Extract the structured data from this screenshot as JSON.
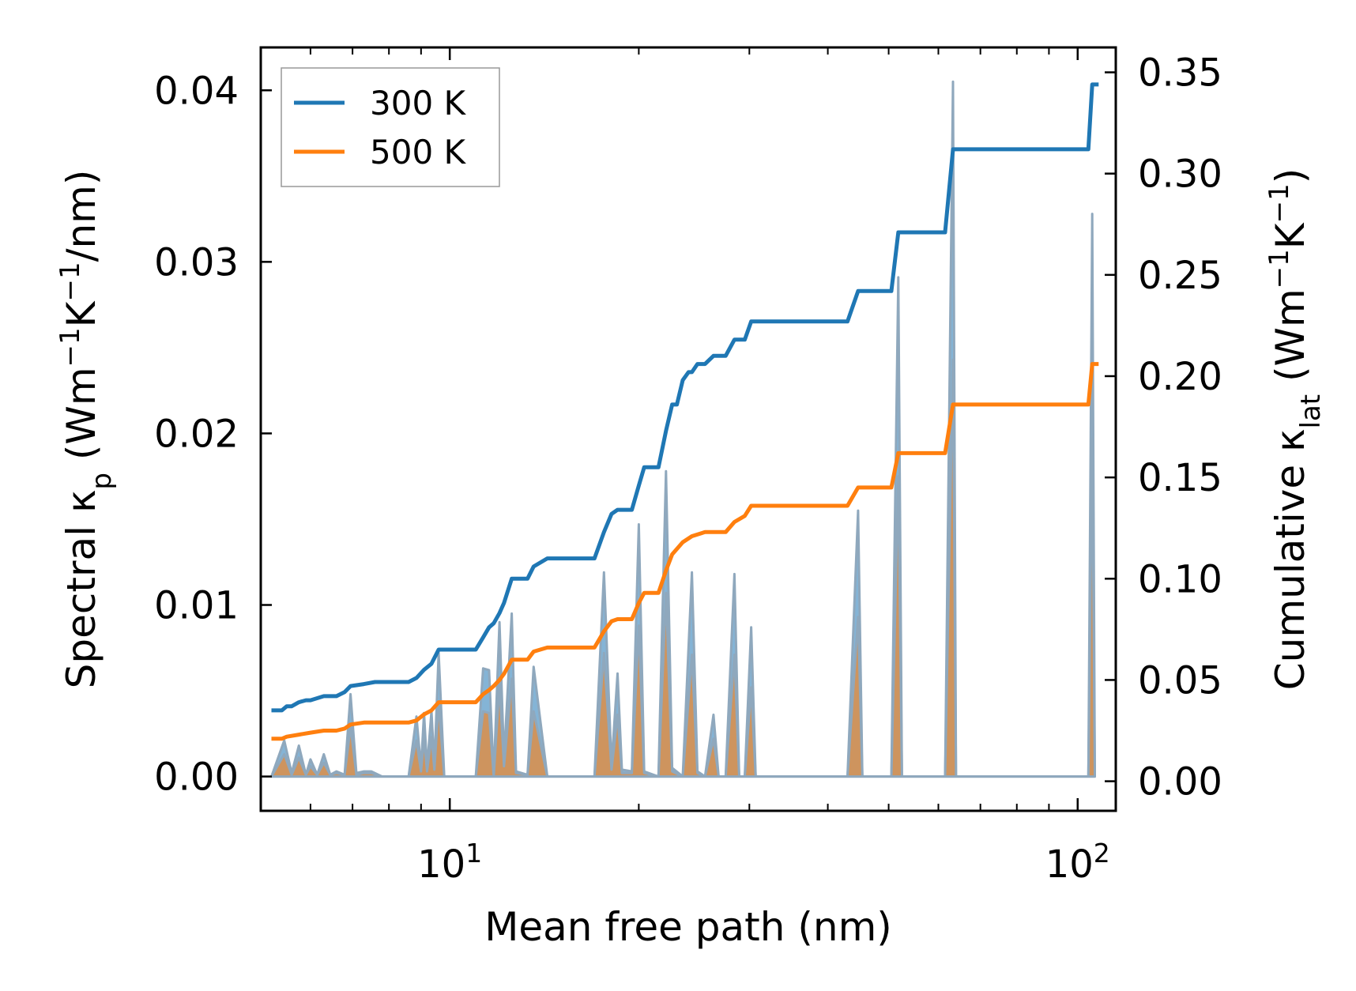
{
  "chart_data": {
    "type": "line",
    "title": "",
    "xlabel": "Mean free path (nm)",
    "xscale": "log",
    "xlim": [
      5.0,
      115
    ],
    "x_ticks": [
      {
        "value": 10,
        "base": "10",
        "exp": "1"
      },
      {
        "value": 100,
        "base": "10",
        "exp": "2"
      }
    ],
    "ylabel_left": {
      "prefix": "Spectral κ",
      "sub": "p",
      "units_open": " (Wm",
      "sup1": "−1",
      "mid": "K",
      "sup2": "−1",
      "close": "/nm)"
    },
    "ylim_left": [
      -0.002,
      0.0425
    ],
    "yticks_left": [
      "0.00",
      "0.01",
      "0.02",
      "0.03",
      "0.04"
    ],
    "ylabel_right": {
      "prefix": "Cumulative κ",
      "sub": "lat",
      "units_open": " (Wm",
      "sup1": "−1",
      "mid": "K",
      "sup2": "−1",
      "close": ")"
    },
    "ylim_right": [
      -0.0146,
      0.3623
    ],
    "yticks_right": [
      "0.00",
      "0.05",
      "0.10",
      "0.15",
      "0.20",
      "0.25",
      "0.30",
      "0.35"
    ],
    "legend": {
      "position": "upper-left",
      "entries": [
        "300 K",
        "500 K"
      ]
    },
    "colors": {
      "300K": "#1f77b4",
      "500K": "#ff7f0e",
      "spectral_edge": "#8fa8bd"
    },
    "spectral": [
      {
        "name": "300 K",
        "axis": "left",
        "points": [
          [
            5.2,
            0
          ],
          [
            5.45,
            0.0021
          ],
          [
            5.6,
            0.0002
          ],
          [
            5.75,
            0.0018
          ],
          [
            5.9,
            0.0001
          ],
          [
            6.0,
            0.001
          ],
          [
            6.15,
            0.0001
          ],
          [
            6.3,
            0.0013
          ],
          [
            6.45,
            0.0001
          ],
          [
            6.6,
            0.0003
          ],
          [
            6.8,
            0.0001
          ],
          [
            6.95,
            0.0048
          ],
          [
            7.1,
            0.0002
          ],
          [
            7.3,
            0.0003
          ],
          [
            7.5,
            0.0003
          ],
          [
            7.8,
            0
          ],
          [
            8.6,
            0
          ],
          [
            8.85,
            0.0035
          ],
          [
            9.0,
            0.0005
          ],
          [
            9.1,
            0.0037
          ],
          [
            9.2,
            0.0005
          ],
          [
            9.35,
            0.0038
          ],
          [
            9.45,
            0.0006
          ],
          [
            9.6,
            0.0072
          ],
          [
            9.8,
            0
          ],
          [
            11.0,
            0
          ],
          [
            11.3,
            0.0063
          ],
          [
            11.55,
            0.0062
          ],
          [
            11.75,
            0.0
          ],
          [
            12.0,
            0.009
          ],
          [
            12.2,
            0.001
          ],
          [
            12.55,
            0.0095
          ],
          [
            12.75,
            0.0003
          ],
          [
            13.3,
            0.0001
          ],
          [
            13.6,
            0.0064
          ],
          [
            14.3,
            0
          ],
          [
            17.0,
            0
          ],
          [
            17.6,
            0.0119
          ],
          [
            18.1,
            0.0006
          ],
          [
            18.5,
            0.006
          ],
          [
            18.8,
            0.0004
          ],
          [
            19.5,
            0.0003
          ],
          [
            20.0,
            0.0147
          ],
          [
            20.4,
            0.0003
          ],
          [
            21.5,
            0
          ],
          [
            22.1,
            0.0178
          ],
          [
            22.6,
            0.0005
          ],
          [
            23.5,
            0
          ],
          [
            24.3,
            0.0119
          ],
          [
            24.8,
            0.0003
          ],
          [
            25.5,
            0
          ],
          [
            26.3,
            0.0036
          ],
          [
            26.8,
            0
          ],
          [
            27.5,
            0
          ],
          [
            28.4,
            0.0118
          ],
          [
            28.9,
            0
          ],
          [
            29.5,
            0
          ],
          [
            30.2,
            0.0087
          ],
          [
            30.7,
            0
          ],
          [
            43.0,
            0
          ],
          [
            44.7,
            0.0155
          ],
          [
            45.4,
            0
          ],
          [
            50.5,
            0
          ],
          [
            51.8,
            0.0291
          ],
          [
            52.5,
            0
          ],
          [
            61.5,
            0
          ],
          [
            63.3,
            0.0405
          ],
          [
            64.0,
            0
          ],
          [
            104.0,
            0
          ],
          [
            105.5,
            0.0328
          ],
          [
            106.5,
            0
          ]
        ]
      },
      {
        "name": "500 K",
        "axis": "left",
        "points": [
          [
            5.2,
            0
          ],
          [
            5.45,
            0.0013
          ],
          [
            5.6,
            0.0001
          ],
          [
            5.75,
            0.0011
          ],
          [
            5.9,
            0.0001
          ],
          [
            6.0,
            0.0006
          ],
          [
            6.15,
            0.0001
          ],
          [
            6.3,
            0.0008
          ],
          [
            6.45,
            0.0001
          ],
          [
            6.6,
            0.0002
          ],
          [
            6.8,
            0.0001
          ],
          [
            6.95,
            0.0029
          ],
          [
            7.1,
            0.0001
          ],
          [
            7.3,
            0.0002
          ],
          [
            7.5,
            0.0002
          ],
          [
            7.8,
            0
          ],
          [
            8.6,
            0
          ],
          [
            8.85,
            0.0021
          ],
          [
            9.0,
            0.0003
          ],
          [
            9.1,
            0.0022
          ],
          [
            9.2,
            0.0003
          ],
          [
            9.35,
            0.0023
          ],
          [
            9.45,
            0.0004
          ],
          [
            9.6,
            0.0043
          ],
          [
            9.8,
            0
          ],
          [
            11.0,
            0
          ],
          [
            11.3,
            0.0038
          ],
          [
            11.55,
            0.0037
          ],
          [
            11.75,
            0.0
          ],
          [
            12.0,
            0.0054
          ],
          [
            12.2,
            0.0006
          ],
          [
            12.55,
            0.0057
          ],
          [
            12.75,
            0.0002
          ],
          [
            13.3,
            0.0001
          ],
          [
            13.6,
            0.0038
          ],
          [
            14.3,
            0
          ],
          [
            17.0,
            0
          ],
          [
            17.6,
            0.0072
          ],
          [
            18.1,
            0.0004
          ],
          [
            18.5,
            0.0036
          ],
          [
            18.8,
            0.0002
          ],
          [
            19.5,
            0.0002
          ],
          [
            20.0,
            0.0088
          ],
          [
            20.4,
            0.0002
          ],
          [
            21.5,
            0
          ],
          [
            22.1,
            0.0107
          ],
          [
            22.6,
            0.0003
          ],
          [
            23.5,
            0
          ],
          [
            24.3,
            0.0071
          ],
          [
            24.8,
            0.0002
          ],
          [
            25.5,
            0
          ],
          [
            26.3,
            0.0022
          ],
          [
            26.8,
            0
          ],
          [
            27.5,
            0
          ],
          [
            28.4,
            0.0071
          ],
          [
            28.9,
            0
          ],
          [
            29.5,
            0
          ],
          [
            30.2,
            0.0052
          ],
          [
            30.7,
            0
          ],
          [
            43.0,
            0
          ],
          [
            44.7,
            0.0093
          ],
          [
            45.4,
            0
          ],
          [
            50.5,
            0
          ],
          [
            51.8,
            0.0175
          ],
          [
            52.5,
            0
          ],
          [
            61.5,
            0
          ],
          [
            63.3,
            0.0243
          ],
          [
            64.0,
            0
          ],
          [
            104.0,
            0
          ],
          [
            105.5,
            0.0197
          ],
          [
            106.5,
            0
          ]
        ]
      }
    ],
    "cumulative": [
      {
        "name": "300 K",
        "axis": "right",
        "points": [
          [
            5.2,
            0.035
          ],
          [
            5.4,
            0.035
          ],
          [
            5.5,
            0.037
          ],
          [
            5.6,
            0.037
          ],
          [
            5.75,
            0.039
          ],
          [
            5.9,
            0.04
          ],
          [
            6.0,
            0.04
          ],
          [
            6.15,
            0.041
          ],
          [
            6.3,
            0.042
          ],
          [
            6.6,
            0.042
          ],
          [
            6.8,
            0.044
          ],
          [
            6.95,
            0.047
          ],
          [
            7.3,
            0.048
          ],
          [
            7.6,
            0.049
          ],
          [
            8.6,
            0.049
          ],
          [
            8.85,
            0.051
          ],
          [
            9.1,
            0.055
          ],
          [
            9.35,
            0.058
          ],
          [
            9.6,
            0.065
          ],
          [
            11.0,
            0.065
          ],
          [
            11.3,
            0.071
          ],
          [
            11.55,
            0.076
          ],
          [
            11.75,
            0.078
          ],
          [
            12.0,
            0.083
          ],
          [
            12.2,
            0.088
          ],
          [
            12.55,
            0.1
          ],
          [
            13.3,
            0.1
          ],
          [
            13.6,
            0.106
          ],
          [
            14.3,
            0.11
          ],
          [
            17.0,
            0.11
          ],
          [
            17.6,
            0.123
          ],
          [
            18.1,
            0.132
          ],
          [
            18.5,
            0.134
          ],
          [
            19.5,
            0.134
          ],
          [
            20.0,
            0.146
          ],
          [
            20.4,
            0.155
          ],
          [
            21.5,
            0.155
          ],
          [
            22.1,
            0.173
          ],
          [
            22.6,
            0.186
          ],
          [
            23.0,
            0.186
          ],
          [
            23.5,
            0.198
          ],
          [
            24.0,
            0.202
          ],
          [
            24.3,
            0.202
          ],
          [
            24.8,
            0.206
          ],
          [
            25.5,
            0.206
          ],
          [
            26.3,
            0.21
          ],
          [
            26.8,
            0.21
          ],
          [
            27.5,
            0.21
          ],
          [
            28.4,
            0.218
          ],
          [
            29.5,
            0.218
          ],
          [
            30.2,
            0.227
          ],
          [
            43.0,
            0.227
          ],
          [
            44.7,
            0.242
          ],
          [
            50.5,
            0.242
          ],
          [
            51.8,
            0.271
          ],
          [
            61.5,
            0.271
          ],
          [
            63.3,
            0.312
          ],
          [
            104.0,
            0.312
          ],
          [
            105.5,
            0.344
          ],
          [
            108.0,
            0.344
          ]
        ]
      },
      {
        "name": "500 K",
        "axis": "right",
        "points": [
          [
            5.2,
            0.021
          ],
          [
            5.4,
            0.021
          ],
          [
            5.5,
            0.022
          ],
          [
            5.75,
            0.023
          ],
          [
            6.0,
            0.024
          ],
          [
            6.3,
            0.025
          ],
          [
            6.6,
            0.025
          ],
          [
            6.8,
            0.026
          ],
          [
            6.95,
            0.028
          ],
          [
            7.3,
            0.029
          ],
          [
            8.6,
            0.029
          ],
          [
            8.85,
            0.03
          ],
          [
            9.1,
            0.033
          ],
          [
            9.35,
            0.035
          ],
          [
            9.6,
            0.039
          ],
          [
            11.0,
            0.039
          ],
          [
            11.3,
            0.043
          ],
          [
            11.55,
            0.045
          ],
          [
            11.75,
            0.047
          ],
          [
            12.0,
            0.05
          ],
          [
            12.2,
            0.053
          ],
          [
            12.55,
            0.06
          ],
          [
            13.3,
            0.06
          ],
          [
            13.6,
            0.064
          ],
          [
            14.3,
            0.066
          ],
          [
            17.0,
            0.066
          ],
          [
            17.6,
            0.074
          ],
          [
            18.1,
            0.079
          ],
          [
            18.5,
            0.08
          ],
          [
            19.5,
            0.08
          ],
          [
            20.0,
            0.088
          ],
          [
            20.4,
            0.093
          ],
          [
            21.5,
            0.093
          ],
          [
            22.1,
            0.104
          ],
          [
            22.6,
            0.112
          ],
          [
            23.5,
            0.118
          ],
          [
            24.3,
            0.121
          ],
          [
            25.5,
            0.123
          ],
          [
            27.5,
            0.123
          ],
          [
            28.4,
            0.128
          ],
          [
            29.5,
            0.131
          ],
          [
            30.2,
            0.136
          ],
          [
            43.0,
            0.136
          ],
          [
            44.7,
            0.145
          ],
          [
            50.5,
            0.145
          ],
          [
            51.8,
            0.162
          ],
          [
            61.5,
            0.162
          ],
          [
            63.3,
            0.186
          ],
          [
            104.0,
            0.186
          ],
          [
            105.5,
            0.206
          ],
          [
            108.0,
            0.206
          ]
        ]
      }
    ]
  }
}
